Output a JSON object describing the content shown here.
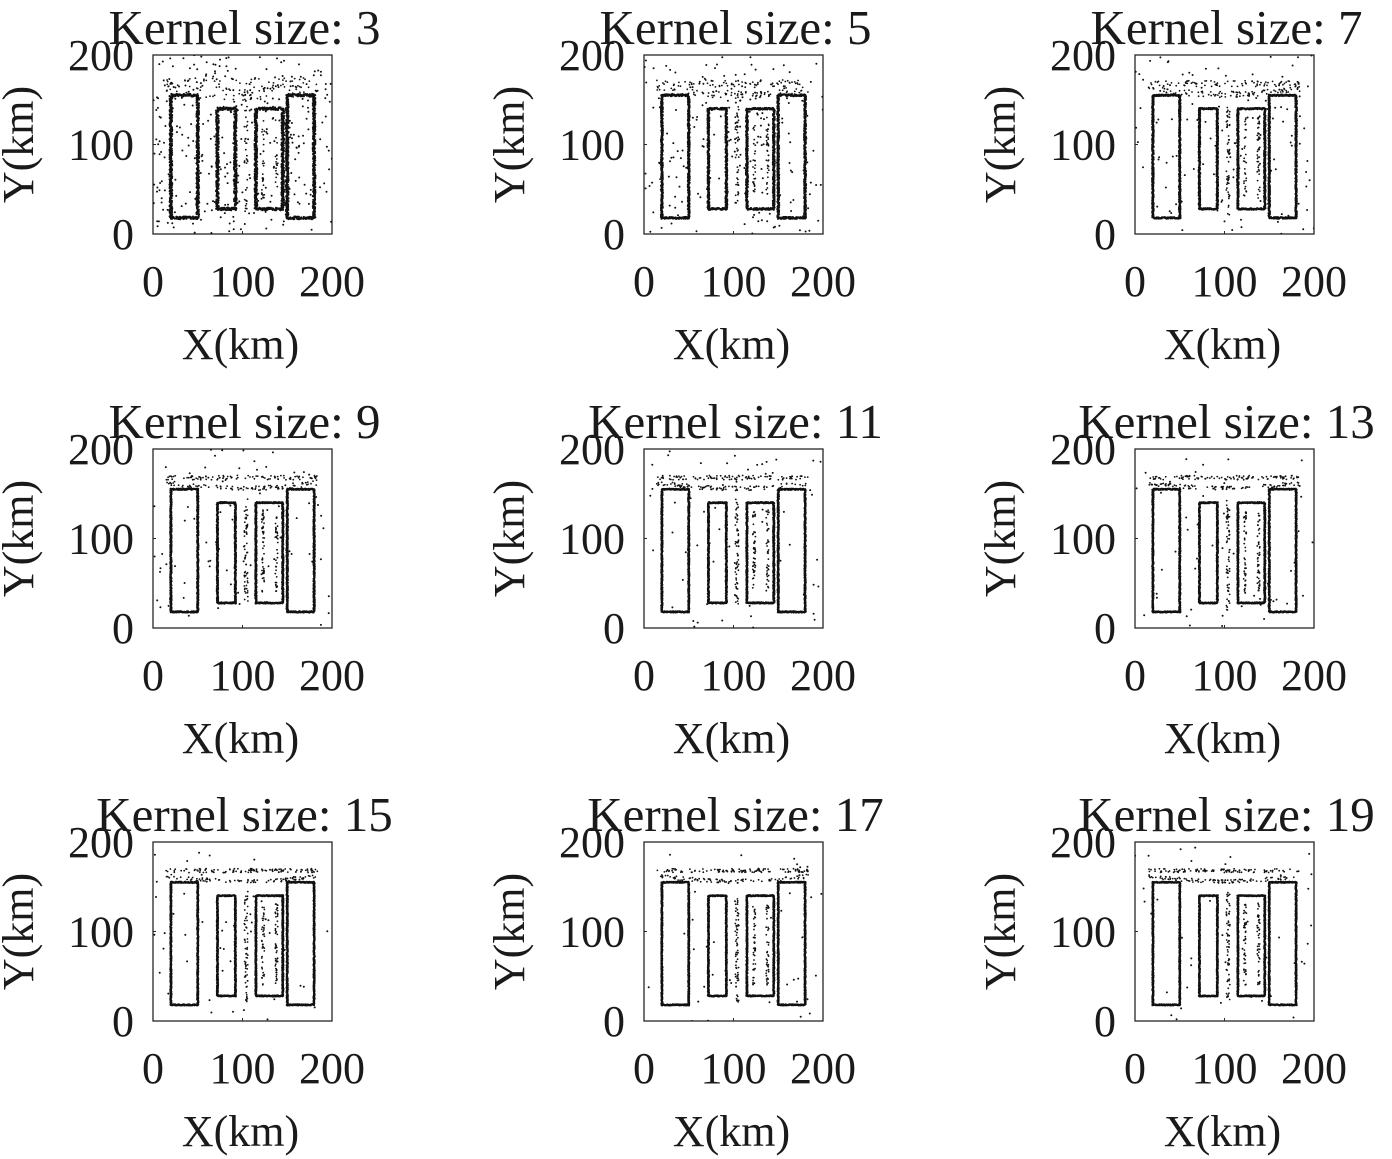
{
  "chart_data": [
    {
      "type": "scatter",
      "title": "Kernel size:  3",
      "kernel_size": 3,
      "xlabel": "X(km)",
      "ylabel": "Y(km)",
      "xlim": [
        0,
        200
      ],
      "ylim": [
        0,
        200
      ],
      "xticks": [
        "0",
        "100",
        "200"
      ],
      "yticks": [
        "0",
        "100",
        "200"
      ],
      "grid": false,
      "noise_level": 1.0,
      "shapes": [
        {
          "x": [
            72,
            92
          ],
          "y": [
            28,
            140
          ]
        },
        {
          "x": [
            115,
            145
          ],
          "y": [
            28,
            140
          ]
        },
        {
          "x": [
            150,
            180
          ],
          "y": [
            18,
            155
          ]
        },
        {
          "x": [
            20,
            50
          ],
          "y": [
            18,
            155
          ]
        }
      ]
    },
    {
      "type": "scatter",
      "title": "Kernel size:  5",
      "kernel_size": 5,
      "xlabel": "X(km)",
      "ylabel": "Y(km)",
      "xlim": [
        0,
        200
      ],
      "ylim": [
        0,
        200
      ],
      "xticks": [
        "0",
        "100",
        "200"
      ],
      "yticks": [
        "0",
        "100",
        "200"
      ],
      "grid": false,
      "noise_level": 0.55,
      "shapes": [
        {
          "x": [
            72,
            92
          ],
          "y": [
            28,
            140
          ]
        },
        {
          "x": [
            115,
            145
          ],
          "y": [
            28,
            140
          ]
        },
        {
          "x": [
            150,
            180
          ],
          "y": [
            18,
            155
          ]
        },
        {
          "x": [
            20,
            50
          ],
          "y": [
            18,
            155
          ]
        }
      ]
    },
    {
      "type": "scatter",
      "title": "Kernel size:  7",
      "kernel_size": 7,
      "xlabel": "X(km)",
      "ylabel": "Y(km)",
      "xlim": [
        0,
        200
      ],
      "ylim": [
        0,
        200
      ],
      "xticks": [
        "0",
        "100",
        "200"
      ],
      "yticks": [
        "0",
        "100",
        "200"
      ],
      "grid": false,
      "noise_level": 0.35,
      "shapes": [
        {
          "x": [
            72,
            92
          ],
          "y": [
            28,
            140
          ]
        },
        {
          "x": [
            115,
            145
          ],
          "y": [
            28,
            140
          ]
        },
        {
          "x": [
            150,
            180
          ],
          "y": [
            18,
            155
          ]
        },
        {
          "x": [
            20,
            50
          ],
          "y": [
            18,
            155
          ]
        }
      ]
    },
    {
      "type": "scatter",
      "title": "Kernel size:  9",
      "kernel_size": 9,
      "xlabel": "X(km)",
      "ylabel": "Y(km)",
      "xlim": [
        0,
        200
      ],
      "ylim": [
        0,
        200
      ],
      "xticks": [
        "0",
        "100",
        "200"
      ],
      "yticks": [
        "0",
        "100",
        "200"
      ],
      "grid": false,
      "noise_level": 0.25,
      "shapes": [
        {
          "x": [
            72,
            92
          ],
          "y": [
            28,
            140
          ]
        },
        {
          "x": [
            115,
            145
          ],
          "y": [
            28,
            140
          ]
        },
        {
          "x": [
            150,
            180
          ],
          "y": [
            18,
            155
          ]
        },
        {
          "x": [
            20,
            50
          ],
          "y": [
            18,
            155
          ]
        }
      ]
    },
    {
      "type": "scatter",
      "title": "Kernel size: 11",
      "kernel_size": 11,
      "xlabel": "X(km)",
      "ylabel": "Y(km)",
      "xlim": [
        0,
        200
      ],
      "ylim": [
        0,
        200
      ],
      "xticks": [
        "0",
        "100",
        "200"
      ],
      "yticks": [
        "0",
        "100",
        "200"
      ],
      "grid": false,
      "noise_level": 0.2,
      "shapes": [
        {
          "x": [
            72,
            92
          ],
          "y": [
            28,
            140
          ]
        },
        {
          "x": [
            115,
            145
          ],
          "y": [
            28,
            140
          ]
        },
        {
          "x": [
            150,
            180
          ],
          "y": [
            18,
            155
          ]
        },
        {
          "x": [
            20,
            50
          ],
          "y": [
            18,
            155
          ]
        }
      ]
    },
    {
      "type": "scatter",
      "title": "Kernel size: 13",
      "kernel_size": 13,
      "xlabel": "X(km)",
      "ylabel": "Y(km)",
      "xlim": [
        0,
        200
      ],
      "ylim": [
        0,
        200
      ],
      "xticks": [
        "0",
        "100",
        "200"
      ],
      "yticks": [
        "0",
        "100",
        "200"
      ],
      "grid": false,
      "noise_level": 0.18,
      "shapes": [
        {
          "x": [
            72,
            92
          ],
          "y": [
            28,
            140
          ]
        },
        {
          "x": [
            115,
            145
          ],
          "y": [
            28,
            140
          ]
        },
        {
          "x": [
            150,
            180
          ],
          "y": [
            18,
            155
          ]
        },
        {
          "x": [
            20,
            50
          ],
          "y": [
            18,
            155
          ]
        }
      ]
    },
    {
      "type": "scatter",
      "title": "Kernel size: 15",
      "kernel_size": 15,
      "xlabel": "X(km)",
      "ylabel": "Y(km)",
      "xlim": [
        0,
        200
      ],
      "ylim": [
        0,
        200
      ],
      "xticks": [
        "0",
        "100",
        "200"
      ],
      "yticks": [
        "0",
        "100",
        "200"
      ],
      "grid": false,
      "noise_level": 0.15,
      "shapes": [
        {
          "x": [
            72,
            92
          ],
          "y": [
            28,
            140
          ]
        },
        {
          "x": [
            115,
            145
          ],
          "y": [
            28,
            140
          ]
        },
        {
          "x": [
            150,
            180
          ],
          "y": [
            18,
            155
          ]
        },
        {
          "x": [
            20,
            50
          ],
          "y": [
            18,
            155
          ]
        }
      ]
    },
    {
      "type": "scatter",
      "title": "Kernel size: 17",
      "kernel_size": 17,
      "xlabel": "X(km)",
      "ylabel": "Y(km)",
      "xlim": [
        0,
        200
      ],
      "ylim": [
        0,
        200
      ],
      "xticks": [
        "0",
        "100",
        "200"
      ],
      "yticks": [
        "0",
        "100",
        "200"
      ],
      "grid": false,
      "noise_level": 0.13,
      "shapes": [
        {
          "x": [
            72,
            92
          ],
          "y": [
            28,
            140
          ]
        },
        {
          "x": [
            115,
            145
          ],
          "y": [
            28,
            140
          ]
        },
        {
          "x": [
            150,
            180
          ],
          "y": [
            18,
            155
          ]
        },
        {
          "x": [
            20,
            50
          ],
          "y": [
            18,
            155
          ]
        }
      ]
    },
    {
      "type": "scatter",
      "title": "Kernel size: 19",
      "kernel_size": 19,
      "xlabel": "X(km)",
      "ylabel": "Y(km)",
      "xlim": [
        0,
        200
      ],
      "ylim": [
        0,
        200
      ],
      "xticks": [
        "0",
        "100",
        "200"
      ],
      "yticks": [
        "0",
        "100",
        "200"
      ],
      "grid": false,
      "noise_level": 0.12,
      "shapes": [
        {
          "x": [
            72,
            92
          ],
          "y": [
            28,
            140
          ]
        },
        {
          "x": [
            115,
            145
          ],
          "y": [
            28,
            140
          ]
        },
        {
          "x": [
            150,
            180
          ],
          "y": [
            18,
            155
          ]
        },
        {
          "x": [
            20,
            50
          ],
          "y": [
            18,
            155
          ]
        }
      ]
    }
  ]
}
